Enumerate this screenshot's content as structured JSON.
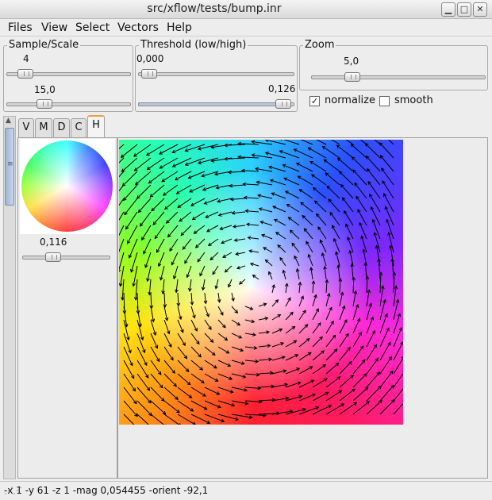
{
  "window": {
    "title": "src/xflow/tests/bump.inr",
    "controls": [
      "minimize-icon",
      "maximize-icon",
      "close-icon"
    ]
  },
  "menu": {
    "files": "Files",
    "view": "View",
    "select": "Select",
    "vectors": "Vectors",
    "help": "Help"
  },
  "sample_scale": {
    "title": "Sample/Scale",
    "sample_value": "4",
    "sample_position": 0.08,
    "scale_value": "15,0",
    "scale_position": 0.26
  },
  "threshold": {
    "title": "Threshold (low/high)",
    "low_value": "0,000",
    "low_position": 0.0,
    "high_value": "0,126",
    "high_position": 1.0
  },
  "zoom": {
    "title": "Zoom",
    "value": "5,0",
    "position": 0.2
  },
  "options": {
    "normalize_label": "normalize",
    "normalize_checked": true,
    "smooth_label": "smooth",
    "smooth_checked": false
  },
  "tabs": [
    {
      "label": "V",
      "active": false
    },
    {
      "label": "M",
      "active": false
    },
    {
      "label": "D",
      "active": false
    },
    {
      "label": "C",
      "active": false
    },
    {
      "label": "H",
      "active": true
    }
  ],
  "hue_panel": {
    "value": "0,116",
    "position": 0.3
  },
  "status": {
    "text": "-x 1 -y 61 -z 1 -mag 0,054455 -orient -92,1"
  },
  "colors": {
    "active_tab_accent": "#e8a038",
    "slider_fill": "#b7c6dc",
    "scroll_thumb": "#9fb4d4"
  }
}
